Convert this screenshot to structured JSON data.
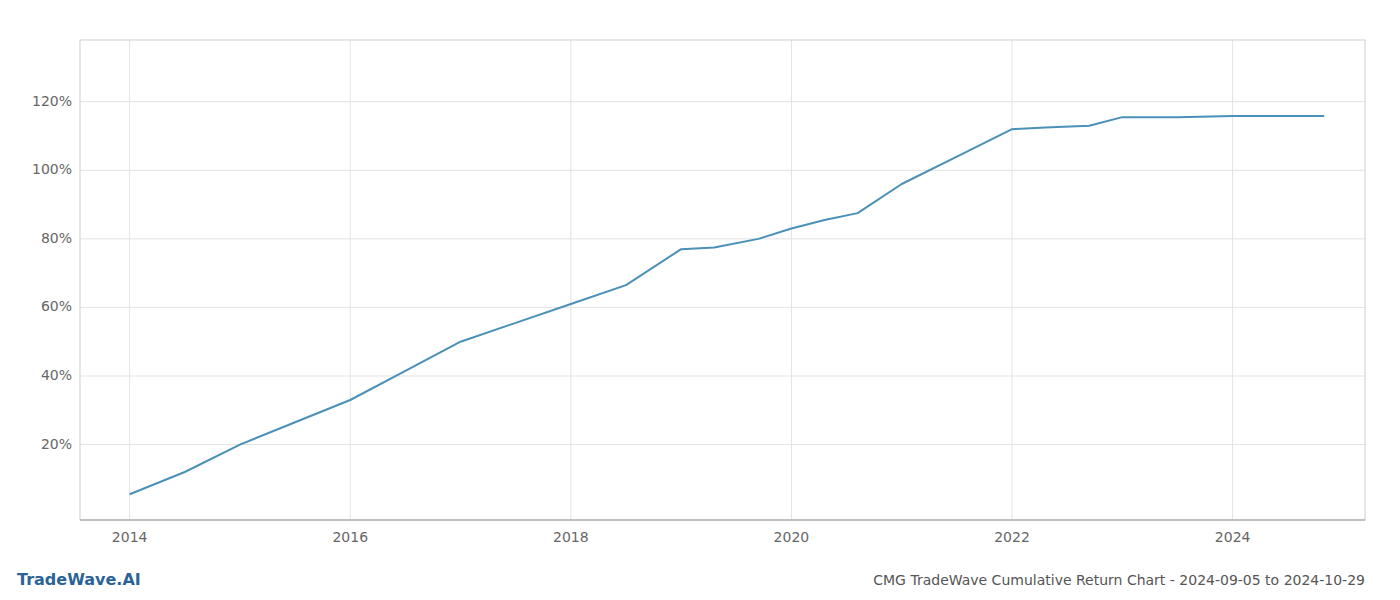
{
  "chart_data": {
    "type": "line",
    "title": "CMG TradeWave Cumulative Return Chart - 2024-09-05 to 2024-10-29",
    "annotations": [
      "TradeWave.AI"
    ],
    "x": [
      2014.0,
      2014.5,
      2015.0,
      2015.5,
      2016.0,
      2016.5,
      2017.0,
      2017.5,
      2018.0,
      2018.5,
      2019.0,
      2019.3,
      2019.7,
      2020.0,
      2020.3,
      2020.6,
      2021.0,
      2021.5,
      2022.0,
      2022.3,
      2022.7,
      2023.0,
      2023.5,
      2024.0,
      2024.5,
      2024.83
    ],
    "values": [
      0.055,
      0.12,
      0.2,
      0.265,
      0.33,
      0.415,
      0.5,
      0.555,
      0.61,
      0.665,
      0.77,
      0.775,
      0.8,
      0.83,
      0.855,
      0.875,
      0.96,
      1.04,
      1.12,
      1.125,
      1.13,
      1.155,
      1.155,
      1.158,
      1.158,
      1.158
    ],
    "color": "#4a90b8",
    "xlim": [
      2013.55,
      2025.2
    ],
    "ylim": [
      -0.02,
      1.38
    ],
    "xticks": [
      2014,
      2016,
      2018,
      2020,
      2022,
      2024
    ],
    "yticks": [
      {
        "value": 0.2,
        "label": "20%"
      },
      {
        "value": 0.4,
        "label": "40%"
      },
      {
        "value": 0.6,
        "label": "60%"
      },
      {
        "value": 0.8,
        "label": "80%"
      },
      {
        "value": 1.0,
        "label": "100%"
      },
      {
        "value": 1.2,
        "label": "120%"
      }
    ],
    "grid": true
  }
}
